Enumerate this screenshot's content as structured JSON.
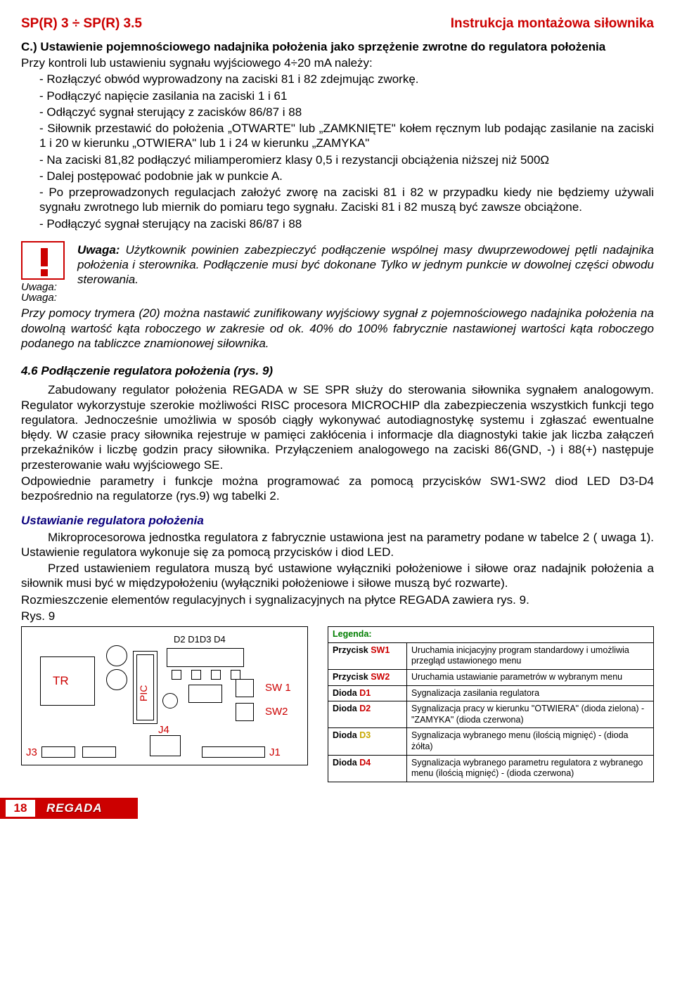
{
  "header": {
    "left": "SP(R) 3 ÷ SP(R) 3.5",
    "right": "Instrukcja montażowa siłownika"
  },
  "sectionC": {
    "title": "C.) Ustawienie pojemnościowego nadajnika położenia jako sprzężenie zwrotne do regulatora położenia",
    "intro": "Przy kontroli lub ustawieniu sygnału wyjściowego 4÷20 mA należy:",
    "b1": "- Rozłączyć obwód wyprowadzony na zaciski 81 i 82 zdejmując zworkę.",
    "b2": "- Podłączyć napięcie zasilania na zaciski 1 i 61",
    "b3": "- Odłączyć sygnał sterujący z zacisków 86/87 i 88",
    "b4": "- Siłownik przestawić do położenia „OTWARTE\" lub „ZAMKNIĘTE\" kołem ręcznym lub podając zasilanie na zaciski 1 i 20 w kierunku „OTWIERA\" lub 1 i 24 w kierunku „ZAMYKA\"",
    "b5": "- Na zaciski 81,82 podłączyć miliamperomierz klasy 0,5  i rezystancji obciążenia  niższej niż 500Ω",
    "b6": "- Dalej postępować podobnie jak w punkcie A.",
    "b7": "- Po przeprowadzonych regulacjach założyć zworę na zaciski 81 i 82 w przypadku kiedy nie będziemy używali sygnału zwrotnego lub miernik do pomiaru tego sygnału. Zaciski 81 i 82 muszą być zawsze obciążone.",
    "b8": "- Podłączyć sygnał sterujący na zaciski 86/87 i 88"
  },
  "warning1": {
    "label": "Uwaga:",
    "title": "Uwaga: ",
    "text": "Użytkownik powinien zabezpieczyć podłączenie wspólnej masy dwuprzewodowej pętli nadajnika położenia i sterownika. Podłączenie musi być dokonane Tylko w jednym punkcie w dowolnej części obwodu sterowania."
  },
  "uwaga2": {
    "label": "Uwaga:",
    "text": "Przy pomocy trymera (20) można nastawić zunifikowany wyjściowy sygnał z pojemnościowego nadajnika położenia na dowolną wartość kąta roboczego w zakresie od ok. 40% do 100% fabrycznie nastawionej wartości kąta roboczego podanego na tabliczce znamionowej siłownika."
  },
  "s46": {
    "head": "4.6   Podłączenie regulatora położenia (rys. 9)",
    "p1": "Zabudowany regulator położenia REGADA w SE SPR służy do sterowania siłownika sygnałem analogowym. Regulator wykorzystuje szerokie możliwości RISC procesora MICROCHIP dla zabezpieczenia wszystkich funkcji tego regulatora. Jednocześnie umożliwia w sposób ciągły wykonywać autodiagnostykę systemu i zgłaszać ewentualne błędy. W czasie pracy siłownika rejestruje w pamięci zakłócenia i informacje dla diagnostyki takie jak liczba załączeń przekaźników i liczbę godzin pracy siłownika. Przyłączeniem analogowego na zaciski 86(GND, -) i 88(+) następuje przesterowanie wału wyjściowego SE.",
    "p2": "Odpowiednie parametry i funkcje można programować za pomocą przycisków SW1-SW2 diod LED D3-D4 bezpośrednio na regulatorze (rys.9) wg tabelki 2."
  },
  "ust": {
    "head": "Ustawianie regulatora położenia",
    "p1": "Mikroprocesorowa jednostka regulatora z fabrycznie ustawiona jest na parametry podane w tabelce 2 ( uwaga 1). Ustawienie regulatora wykonuje się za pomocą przycisków i diod LED.",
    "p2": "Przed ustawieniem regulatora muszą być ustawione wyłączniki położeniowe i siłowe oraz nadajnik położenia a siłownik musi być w międzypołożeniu (wyłączniki położeniowe i siłowe muszą być rozwarte).",
    "p3": "Rozmieszczenie elementów regulacyjnych i sygnalizacyjnych na płytce REGADA zawiera rys. 9.",
    "rys": "Rys. 9"
  },
  "pcb": {
    "tr": "TR",
    "pic": "PIC",
    "d": "D2 D1D3  D4",
    "sw1": "SW 1",
    "sw2": "SW2",
    "j1": "J1",
    "j3": "J3",
    "j4": "J4"
  },
  "legend": {
    "head": "Legenda:",
    "rows": [
      {
        "k": "Przycisk ",
        "kc": "SW1",
        "color": "r",
        "v": "Uruchamia inicjacyjny program standardowy i umożliwia przegląd ustawionego menu"
      },
      {
        "k": "Przycisk ",
        "kc": "SW2",
        "color": "r",
        "v": "Uruchamia ustawianie parametrów w wybranym menu"
      },
      {
        "k": "Dioda ",
        "kc": "D1",
        "color": "r",
        "v": "Sygnalizacja zasilania regulatora"
      },
      {
        "k": "Dioda ",
        "kc": "D2",
        "color": "r",
        "v": "Sygnalizacja pracy w kierunku \"OTWIERA\" (dioda zielona) - \"ZAMYKA\" (dioda czerwona)"
      },
      {
        "k": "Dioda ",
        "kc": "D3",
        "color": "y",
        "v": "Sygnalizacja wybranego menu (ilością mignięć) - (dioda żółta)"
      },
      {
        "k": "Dioda ",
        "kc": "D4",
        "color": "r",
        "v": "Sygnalizacja wybranego parametru regulatora z wybranego menu (ilością mignięć) - (dioda czerwona)"
      }
    ]
  },
  "footer": {
    "page": "18",
    "brand": "REGADA"
  }
}
